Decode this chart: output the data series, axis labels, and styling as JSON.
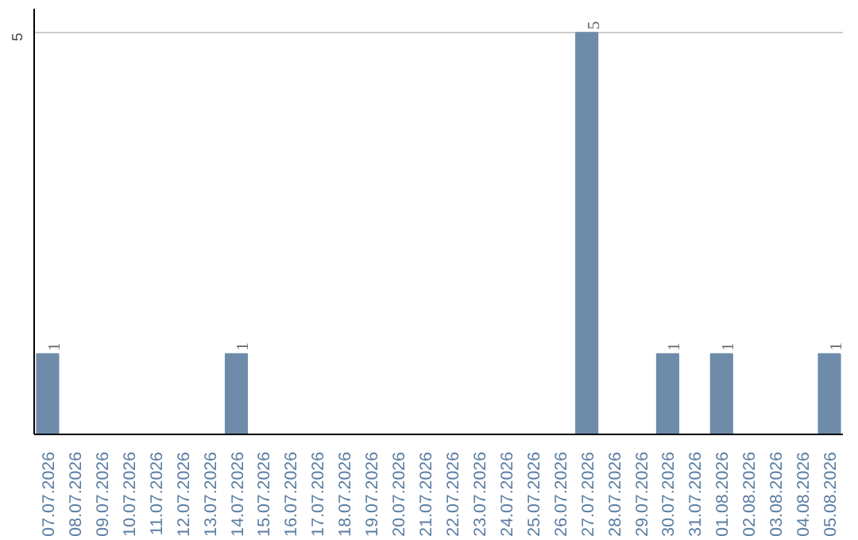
{
  "chart_data": {
    "type": "bar",
    "categories": [
      "07.07.2026",
      "08.07.2026",
      "09.07.2026",
      "10.07.2026",
      "11.07.2026",
      "12.07.2026",
      "13.07.2026",
      "14.07.2026",
      "15.07.2026",
      "16.07.2026",
      "17.07.2026",
      "18.07.2026",
      "19.07.2026",
      "20.07.2026",
      "21.07.2026",
      "22.07.2026",
      "23.07.2026",
      "24.07.2026",
      "25.07.2026",
      "26.07.2026",
      "27.07.2026",
      "28.07.2026",
      "29.07.2026",
      "30.07.2026",
      "31.07.2026",
      "01.08.2026",
      "02.08.2026",
      "03.08.2026",
      "04.08.2026",
      "05.08.2026"
    ],
    "values": [
      1,
      0,
      0,
      0,
      0,
      0,
      0,
      1,
      0,
      0,
      0,
      0,
      0,
      0,
      0,
      0,
      0,
      0,
      0,
      0,
      5,
      0,
      0,
      1,
      0,
      1,
      0,
      0,
      0,
      1
    ],
    "color": "#6e8caa",
    "value_labels": [
      "1",
      null,
      null,
      null,
      null,
      null,
      null,
      "1",
      null,
      null,
      null,
      null,
      null,
      null,
      null,
      null,
      null,
      null,
      null,
      null,
      "5",
      null,
      null,
      "1",
      null,
      "1",
      null,
      null,
      null,
      "1"
    ],
    "ylim": [
      0,
      5.3
    ],
    "yticks": [
      5
    ],
    "grid": "y"
  }
}
